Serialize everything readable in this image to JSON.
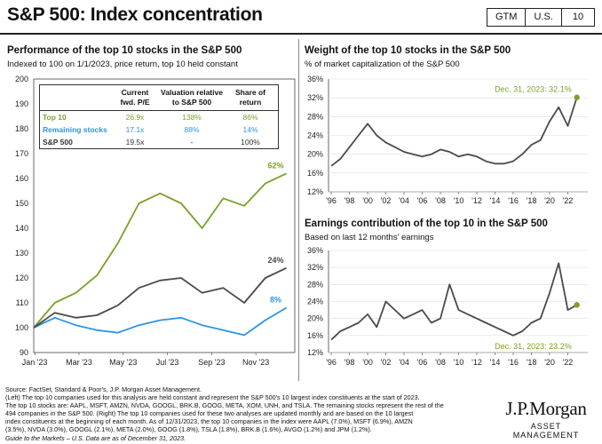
{
  "header": {
    "title": "S&P 500: Index concentration",
    "badges": [
      "GTM",
      "U.S.",
      "10"
    ]
  },
  "left_panel": {
    "title": "Performance of the top 10 stocks in the S&P 500",
    "subtitle": "Indexed to 100 on 1/1/2023, price return, top 10 held constant",
    "table": {
      "headers": [
        "",
        "Current fwd. P/E",
        "Valuation relative to S&P 500",
        "Share of return"
      ],
      "rows": [
        [
          "Top 10",
          "26.9x",
          "138%",
          "86%"
        ],
        [
          "Remaining stocks",
          "17.1x",
          "88%",
          "14%"
        ],
        [
          "S&P 500",
          "19.5x",
          "-",
          "100%"
        ]
      ]
    }
  },
  "right_top": {
    "title": "Weight of the top 10 stocks in the S&P 500",
    "subtitle": "% of market capitalization of the S&P 500"
  },
  "right_bottom": {
    "title": "Earnings contribution of the top 10 in the S&P 500",
    "subtitle": "Based on last 12 months' earnings"
  },
  "chart_data": [
    {
      "type": "line",
      "title": "Performance of the top 10 stocks in the S&P 500",
      "ylim": [
        90,
        200
      ],
      "yticks": [
        "90",
        "100",
        "110",
        "120",
        "130",
        "140",
        "150",
        "160",
        "170",
        "180",
        "190",
        "200"
      ],
      "xticks": [
        "Jan '23",
        "Mar '23",
        "May '23",
        "Jul '23",
        "Sep '23",
        "Nov '23"
      ],
      "x": [
        0,
        1,
        2,
        3,
        4,
        5,
        6,
        7,
        8,
        9,
        10,
        11,
        12
      ],
      "series": [
        {
          "name": "Top 10",
          "color": "#7aa12a",
          "end_label": "62%",
          "values": [
            100,
            110,
            114,
            121,
            134,
            150,
            154,
            150,
            140,
            152,
            149,
            158,
            162
          ]
        },
        {
          "name": "Remaining stocks",
          "color": "#2e95e0",
          "end_label": "8%",
          "values": [
            100,
            104,
            101,
            99,
            98,
            101,
            103,
            104,
            101,
            99,
            97,
            103,
            108
          ]
        },
        {
          "name": "S&P 500",
          "color": "#4a4a4a",
          "end_label": "24%",
          "values": [
            100,
            106,
            104,
            105,
            109,
            116,
            119,
            120,
            114,
            116,
            110,
            120,
            124
          ]
        }
      ]
    },
    {
      "type": "line",
      "title": "Weight of the top 10 stocks in the S&P 500",
      "ylim": [
        12,
        36
      ],
      "yticks": [
        "12%",
        "16%",
        "20%",
        "24%",
        "28%",
        "32%",
        "36%"
      ],
      "xticks": [
        "'96",
        "'98",
        "'00",
        "'02",
        "'04",
        "'06",
        "'08",
        "'10",
        "'12",
        "'14",
        "'16",
        "'18",
        "'20",
        "'22"
      ],
      "x": [
        1996,
        1997,
        1998,
        1999,
        2000,
        2001,
        2002,
        2003,
        2004,
        2005,
        2006,
        2007,
        2008,
        2009,
        2010,
        2011,
        2012,
        2013,
        2014,
        2015,
        2016,
        2017,
        2018,
        2019,
        2020,
        2021,
        2022,
        2023
      ],
      "series": [
        {
          "name": "Top 10 weight",
          "color": "#4a4a4a",
          "values": [
            17.5,
            19,
            21.5,
            24,
            26.5,
            24,
            22.5,
            21.5,
            20.5,
            20,
            19.5,
            20,
            21,
            20.5,
            19.5,
            20,
            19.5,
            18.5,
            18,
            18,
            18.5,
            20,
            22,
            23,
            27,
            30,
            26,
            32.1
          ]
        }
      ],
      "annotation": "Dec. 31, 2023: 32.1%"
    },
    {
      "type": "line",
      "title": "Earnings contribution of the top 10 in the S&P 500",
      "ylim": [
        12,
        36
      ],
      "yticks": [
        "12%",
        "16%",
        "20%",
        "24%",
        "28%",
        "32%",
        "36%"
      ],
      "xticks": [
        "'96",
        "'98",
        "'00",
        "'02",
        "'04",
        "'06",
        "'08",
        "'10",
        "'12",
        "'14",
        "'16",
        "'18",
        "'20",
        "'22"
      ],
      "x": [
        1996,
        1997,
        1998,
        1999,
        2000,
        2001,
        2002,
        2003,
        2004,
        2005,
        2006,
        2007,
        2008,
        2009,
        2010,
        2011,
        2012,
        2013,
        2014,
        2015,
        2016,
        2017,
        2018,
        2019,
        2020,
        2021,
        2022,
        2023
      ],
      "series": [
        {
          "name": "Top 10 earnings share",
          "color": "#4a4a4a",
          "values": [
            15,
            17,
            18,
            19,
            21,
            18,
            24,
            22,
            20,
            21,
            22,
            19,
            20,
            28,
            22,
            21,
            20,
            19,
            18,
            17,
            16,
            17,
            19,
            20,
            26,
            33,
            22,
            23.2
          ]
        }
      ],
      "annotation": "Dec. 31, 2023: 23.2%"
    }
  ],
  "footer": {
    "lines": [
      "Source: FactSet, Standard & Poor's, J.P. Morgan Asset Management.",
      "(Left) The top 10 companies used for this analysis are held constant and represent the S&P 500's 10 largest index constituents at the start of 2023.",
      "The top 10 stocks are: AAPL, MSFT, AMZN, NVDA, GOOGL, BRK.B, GOOG, META, XOM, UNH, and TSLA. The remaining stocks represent the rest of the",
      "494 companies in the S&P 500. (Right) The top 10 companies used for these two analyses are updated monthly and are based on the 10 largest",
      "index constituents at the beginning of each month. As of 12/31/2023, the top 10 companies in the index were AAPL (7.0%), MSFT (6.9%), AMZN",
      "(3.5%), NVDA (3.0%), GOOGL (2.1%), META (2.0%), GOOG (1.8%), TSLA (1.8%), BRK.B (1.6%), AVGO (1.2%) and JPM (1.2%)."
    ],
    "guide": "Guide to the Markets – U.S. Data are as of December 31, 2023."
  },
  "logo": {
    "line1": "J.P.Morgan",
    "line2": "ASSET MANAGEMENT"
  }
}
